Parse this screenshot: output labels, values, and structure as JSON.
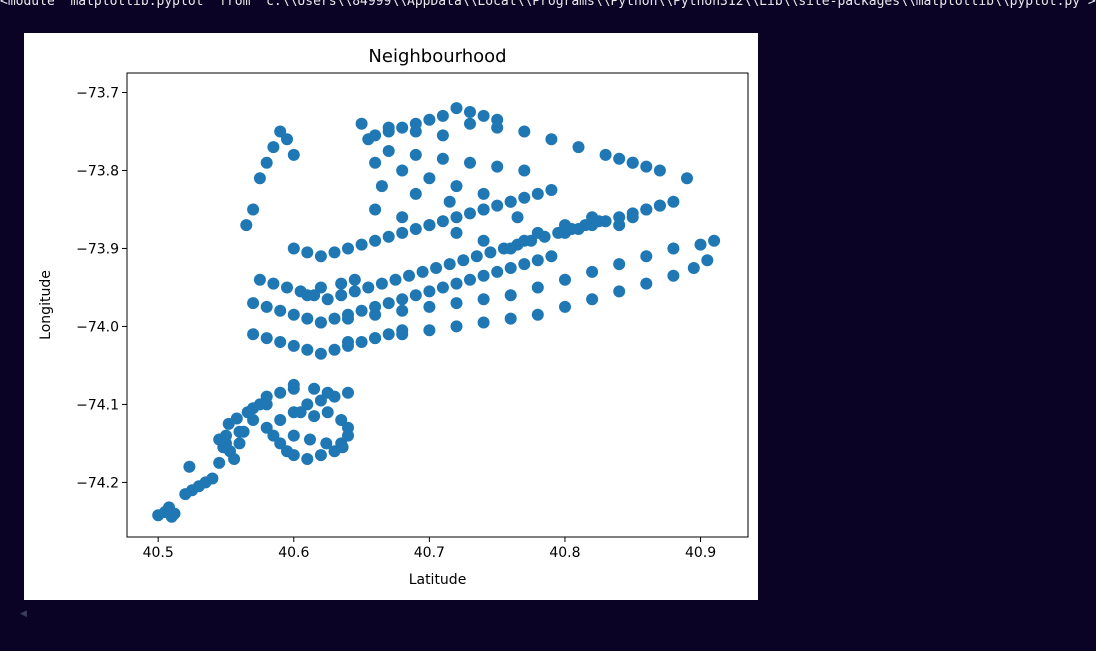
{
  "output": {
    "text": "<module 'matplotlib.pyplot' from 'c:\\\\Users\\\\84999\\\\AppData\\\\Local\\\\Programs\\\\Python\\\\Python312\\\\Lib\\\\site-packages\\\\matplotlib\\\\pyplot.py'>"
  },
  "scroll_icon": "scroll-left-icon",
  "chart_data": {
    "type": "scatter",
    "title": "Neighbourhood",
    "xlabel": "Latitude",
    "ylabel": "Longitude",
    "xlim": [
      40.477,
      40.935
    ],
    "ylim": [
      -74.27,
      -73.675
    ],
    "xticks": [
      40.5,
      40.6,
      40.7,
      40.8,
      40.9
    ],
    "xtick_labels": [
      "40.5",
      "40.6",
      "40.7",
      "40.8",
      "40.9"
    ],
    "yticks": [
      -73.7,
      -73.8,
      -73.9,
      -74.0,
      -74.1,
      -74.2
    ],
    "ytick_labels": [
      "−73.7",
      "−73.8",
      "−73.9",
      "−74.0",
      "−74.1",
      "−74.2"
    ],
    "grid": false,
    "legend": "none",
    "marker_color": "#1f77b4",
    "series": [
      {
        "x": [
          40.5,
          40.505,
          40.51,
          40.508,
          40.512,
          40.52,
          40.525,
          40.53,
          40.535,
          40.523,
          40.54,
          40.545,
          40.548,
          40.55,
          40.553,
          40.556,
          40.56,
          40.563,
          40.545,
          40.552,
          40.558,
          40.566,
          40.57,
          40.575,
          40.58,
          40.59,
          40.6,
          40.58,
          40.585,
          40.59,
          40.595,
          40.6,
          40.61,
          40.62,
          40.63,
          40.635,
          40.64,
          40.59,
          40.6,
          40.61,
          40.62,
          40.63,
          40.64,
          40.635,
          40.64,
          40.57,
          40.58,
          40.59,
          40.6,
          40.61,
          40.62,
          40.63,
          40.64,
          40.65,
          40.66,
          40.67,
          40.68,
          40.57,
          40.58,
          40.59,
          40.6,
          40.61,
          40.62,
          40.63,
          40.64,
          40.65,
          40.66,
          40.67,
          40.68,
          40.69,
          40.7,
          40.71,
          40.72,
          40.73,
          40.74,
          40.75,
          40.76,
          40.77,
          40.78,
          40.79,
          40.575,
          40.585,
          40.595,
          40.605,
          40.615,
          40.625,
          40.635,
          40.645,
          40.655,
          40.665,
          40.675,
          40.685,
          40.695,
          40.705,
          40.715,
          40.725,
          40.735,
          40.745,
          40.755,
          40.765,
          40.775,
          40.785,
          40.795,
          40.805,
          40.815,
          40.825,
          40.6,
          40.61,
          40.62,
          40.63,
          40.64,
          40.65,
          40.66,
          40.67,
          40.68,
          40.69,
          40.7,
          40.71,
          40.72,
          40.73,
          40.74,
          40.75,
          40.76,
          40.77,
          40.78,
          40.79,
          40.8,
          40.81,
          40.82,
          40.83,
          40.84,
          40.85,
          40.86,
          40.87,
          40.62,
          40.64,
          40.66,
          40.68,
          40.7,
          40.72,
          40.74,
          40.76,
          40.78,
          40.8,
          40.82,
          40.84,
          40.86,
          40.88,
          40.9,
          40.91,
          40.64,
          40.66,
          40.68,
          40.7,
          40.72,
          40.74,
          40.76,
          40.78,
          40.8,
          40.82,
          40.84,
          40.86,
          40.88,
          40.895,
          40.905,
          40.65,
          40.67,
          40.69,
          40.71,
          40.73,
          40.75,
          40.77,
          40.79,
          40.81,
          40.83,
          40.85,
          40.87,
          40.89,
          40.655,
          40.67,
          40.69,
          40.71,
          40.73,
          40.75,
          40.77,
          40.66,
          40.68,
          40.7,
          40.72,
          40.74,
          40.76,
          40.66,
          40.68,
          40.7,
          40.72,
          40.74,
          40.76,
          40.665,
          40.69,
          40.715,
          40.74,
          40.765,
          40.59,
          40.595,
          40.585,
          40.58,
          40.575,
          40.57,
          40.565,
          40.6,
          40.84,
          40.85,
          40.86,
          40.84,
          40.85,
          40.86,
          40.87,
          40.88,
          40.82,
          40.8,
          40.78,
          40.77,
          40.55,
          40.56,
          40.57,
          40.58,
          40.6,
          40.615,
          40.625,
          40.605,
          40.615,
          40.625,
          40.6,
          40.612,
          40.624,
          40.636,
          40.61,
          40.62,
          40.635,
          40.645,
          40.72,
          40.73,
          40.74,
          40.75,
          40.71,
          40.7,
          40.69,
          40.68,
          40.67,
          40.66
        ],
        "y": [
          -74.242,
          -74.238,
          -74.244,
          -74.232,
          -74.24,
          -74.215,
          -74.21,
          -74.205,
          -74.2,
          -74.18,
          -74.195,
          -74.175,
          -74.155,
          -74.14,
          -74.16,
          -74.17,
          -74.15,
          -74.135,
          -74.145,
          -74.125,
          -74.118,
          -74.11,
          -74.105,
          -74.1,
          -74.09,
          -74.085,
          -74.08,
          -74.13,
          -74.14,
          -74.15,
          -74.16,
          -74.165,
          -74.17,
          -74.165,
          -74.16,
          -74.15,
          -74.14,
          -74.12,
          -74.11,
          -74.1,
          -74.095,
          -74.09,
          -74.085,
          -74.12,
          -74.13,
          -74.01,
          -74.015,
          -74.02,
          -74.025,
          -74.03,
          -74.035,
          -74.03,
          -74.025,
          -74.02,
          -74.015,
          -74.01,
          -74.005,
          -73.97,
          -73.975,
          -73.98,
          -73.985,
          -73.99,
          -73.995,
          -73.99,
          -73.985,
          -73.98,
          -73.975,
          -73.97,
          -73.965,
          -73.96,
          -73.955,
          -73.95,
          -73.945,
          -73.94,
          -73.935,
          -73.93,
          -73.925,
          -73.92,
          -73.915,
          -73.91,
          -73.94,
          -73.945,
          -73.95,
          -73.955,
          -73.96,
          -73.965,
          -73.96,
          -73.955,
          -73.95,
          -73.945,
          -73.94,
          -73.935,
          -73.93,
          -73.925,
          -73.92,
          -73.915,
          -73.91,
          -73.905,
          -73.9,
          -73.895,
          -73.89,
          -73.885,
          -73.88,
          -73.875,
          -73.87,
          -73.865,
          -73.9,
          -73.905,
          -73.91,
          -73.905,
          -73.9,
          -73.895,
          -73.89,
          -73.885,
          -73.88,
          -73.875,
          -73.87,
          -73.865,
          -73.86,
          -73.855,
          -73.85,
          -73.845,
          -73.84,
          -73.835,
          -73.83,
          -73.825,
          -73.88,
          -73.875,
          -73.87,
          -73.865,
          -73.86,
          -73.855,
          -73.85,
          -73.845,
          -73.995,
          -73.99,
          -73.985,
          -73.98,
          -73.975,
          -73.97,
          -73.965,
          -73.96,
          -73.95,
          -73.94,
          -73.93,
          -73.92,
          -73.91,
          -73.9,
          -73.895,
          -73.89,
          -74.02,
          -74.015,
          -74.01,
          -74.005,
          -74.0,
          -73.995,
          -73.99,
          -73.985,
          -73.975,
          -73.965,
          -73.955,
          -73.945,
          -73.935,
          -73.925,
          -73.915,
          -73.74,
          -73.745,
          -73.75,
          -73.755,
          -73.74,
          -73.745,
          -73.75,
          -73.76,
          -73.77,
          -73.78,
          -73.79,
          -73.8,
          -73.81,
          -73.76,
          -73.775,
          -73.78,
          -73.785,
          -73.79,
          -73.795,
          -73.8,
          -73.79,
          -73.8,
          -73.81,
          -73.82,
          -73.83,
          -73.84,
          -73.85,
          -73.86,
          -73.87,
          -73.88,
          -73.89,
          -73.9,
          -73.82,
          -73.83,
          -73.84,
          -73.85,
          -73.86,
          -73.75,
          -73.76,
          -73.77,
          -73.79,
          -73.81,
          -73.85,
          -73.87,
          -73.78,
          -73.785,
          -73.79,
          -73.795,
          -73.87,
          -73.86,
          -73.85,
          -73.845,
          -73.84,
          -73.86,
          -73.87,
          -73.88,
          -73.89,
          -74.15,
          -74.135,
          -74.12,
          -74.1,
          -74.075,
          -74.08,
          -74.085,
          -74.11,
          -74.115,
          -74.11,
          -74.14,
          -74.145,
          -74.15,
          -74.155,
          -73.96,
          -73.95,
          -73.945,
          -73.94,
          -73.72,
          -73.725,
          -73.73,
          -73.735,
          -73.73,
          -73.735,
          -73.74,
          -73.745,
          -73.75,
          -73.755
        ]
      }
    ]
  }
}
